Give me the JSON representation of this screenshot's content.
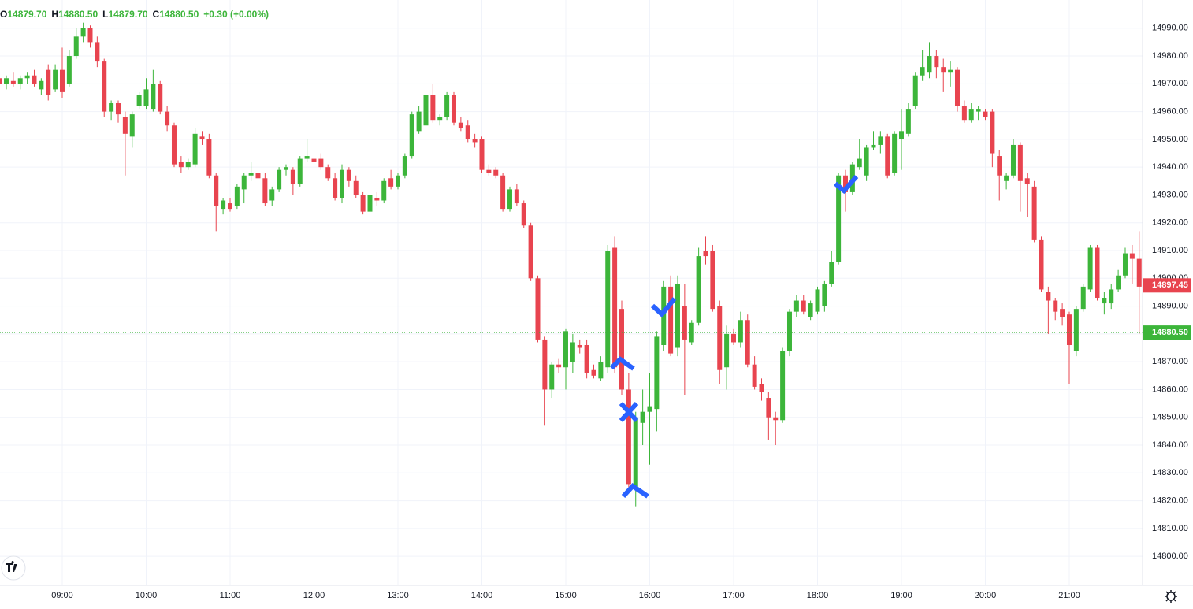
{
  "chart_data": {
    "type": "candlestick",
    "header": [
      {
        "key": "O",
        "value": "14879.70"
      },
      {
        "key": "H",
        "value": "14880.50"
      },
      {
        "key": "L",
        "value": "14879.70"
      },
      {
        "key": "C",
        "value": "14880.50"
      }
    ],
    "change": "+0.30 (+0.00%)",
    "up_color": "#3cb53a",
    "down_color": "#e8444f",
    "x": [
      495,
      500,
      505,
      510,
      515,
      520,
      525,
      530,
      535,
      540,
      545,
      550,
      555,
      560,
      565,
      570,
      575,
      580,
      585,
      590,
      595,
      600,
      605,
      610,
      615,
      620,
      625,
      630,
      635,
      640,
      645,
      650,
      655,
      660,
      665,
      670,
      675,
      680,
      685,
      690,
      695,
      700,
      705,
      710,
      715,
      720,
      725,
      730,
      735,
      740,
      745,
      750,
      755,
      760,
      765,
      770,
      775,
      780,
      785,
      790,
      795,
      800,
      805,
      810,
      815,
      820,
      825,
      830,
      835,
      840,
      845,
      850,
      855,
      860,
      865,
      870,
      875,
      880,
      885,
      890,
      895,
      900,
      905,
      910,
      915,
      920,
      925,
      930,
      935,
      940,
      945,
      950,
      955,
      960,
      965,
      970,
      975,
      980,
      985,
      990,
      995,
      1000,
      1005,
      1010,
      1015,
      1020,
      1025,
      1030,
      1035,
      1040,
      1045,
      1050,
      1055,
      1060,
      1065,
      1070,
      1075,
      1080,
      1085,
      1090,
      1095,
      1100,
      1105,
      1110,
      1115,
      1120,
      1125,
      1130,
      1135,
      1140,
      1145,
      1150,
      1155,
      1160,
      1165,
      1170,
      1175,
      1180,
      1185,
      1190,
      1195,
      1200,
      1205,
      1210,
      1215,
      1220,
      1225,
      1230,
      1235,
      1240,
      1245,
      1250,
      1255,
      1260,
      1265,
      1270,
      1275,
      1280,
      1285,
      1290,
      1295,
      1300,
      1305,
      1310
    ],
    "open": [
      14972,
      14970,
      14971,
      14970,
      14972,
      14973,
      14968,
      14975,
      14968,
      14975,
      14970,
      14980,
      14987,
      14990,
      14985,
      14978,
      14960,
      14963,
      14958,
      14951,
      14962,
      14962,
      14961,
      14970,
      14960,
      14955,
      14942,
      14940,
      14941,
      14951,
      14950,
      14937,
      14925,
      14927,
      14926,
      14932,
      14937,
      14938,
      14936,
      14928,
      14932,
      14939,
      14939,
      14934,
      14943,
      14943,
      14943,
      14940,
      14936,
      14929,
      14939,
      14935,
      14930,
      14924,
      14929,
      14928,
      14936,
      14933,
      14937,
      14944,
      14953,
      14955,
      14966,
      14957,
      14958,
      14966,
      14956,
      14955,
      14950,
      14950,
      14939,
      14939,
      14937,
      14925,
      14932,
      14927,
      14919,
      14900,
      14878,
      14860,
      14869,
      14868,
      14870,
      14876,
      14876,
      14867,
      14864,
      14868,
      14911,
      14889,
      14860,
      14825,
      14848,
      14852,
      14853,
      14876,
      14897,
      14875,
      14890,
      14877,
      14884,
      14910,
      14910,
      14890,
      14868,
      14880,
      14877,
      14885,
      14869,
      14862,
      14857,
      14850,
      14849,
      14874,
      14888,
      14892,
      14886,
      14888,
      14890,
      14898,
      14906,
      14937,
      14931,
      14940,
      14937,
      14947,
      14948,
      14951,
      14938,
      14950,
      14952,
      14962,
      14973,
      14974,
      14980,
      14976,
      14974,
      14975,
      14962,
      14957,
      14960,
      14960,
      14960,
      14944,
      14935,
      14937,
      14948,
      14936,
      14933,
      14914,
      14895,
      14892,
      14889,
      14887,
      14874,
      14889,
      14896,
      14911,
      14891,
      14891,
      14896,
      14901,
      14909,
      14907
    ],
    "high": [
      14975,
      14973,
      14974,
      14973,
      14974,
      14975,
      14972,
      14977,
      14977,
      14983,
      14982,
      14990,
      14992,
      14991,
      14987,
      14979,
      14964,
      14964,
      14960,
      14960,
      14967,
      14972,
      14975,
      14971,
      14962,
      14956,
      14944,
      14943,
      14954,
      14953,
      14952,
      14938,
      14929,
      14929,
      14934,
      14938,
      14942,
      14940,
      14938,
      14933,
      14940,
      14941,
      14940,
      14944,
      14950,
      14945,
      14945,
      14941,
      14938,
      14941,
      14940,
      14937,
      14931,
      14931,
      14931,
      14936,
      14939,
      14938,
      14945,
      14960,
      14962,
      14967,
      14970,
      14959,
      14967,
      14967,
      14958,
      14957,
      14952,
      14951,
      14941,
      14940,
      14938,
      14933,
      14934,
      14928,
      14920,
      14901,
      14879,
      14870,
      14871,
      14882,
      14880,
      14878,
      14878,
      14869,
      14872,
      14912,
      14915,
      14892,
      14866,
      14852,
      14860,
      14866,
      14881,
      14899,
      14901,
      14901,
      14898,
      14885,
      14911,
      14915,
      14912,
      14892,
      14883,
      14882,
      14888,
      14887,
      14872,
      14864,
      14859,
      14852,
      14875,
      14889,
      14894,
      14894,
      14892,
      14897,
      14899,
      14910,
      14938,
      14939,
      14942,
      14950,
      14948,
      14953,
      14953,
      14952,
      14953,
      14961,
      14963,
      14974,
      14982,
      14985,
      14982,
      14979,
      14978,
      14976,
      14964,
      14963,
      14962,
      14961,
      14961,
      14946,
      14938,
      14950,
      14949,
      14938,
      14935,
      14915,
      14897,
      14893,
      14891,
      14888,
      14890,
      14898,
      14912,
      14912,
      14895,
      14898,
      14903,
      14911,
      14912,
      14917
    ],
    "low": [
      14968,
      14968,
      14969,
      14968,
      14970,
      14969,
      14966,
      14964,
      14967,
      14965,
      14969,
      14979,
      14985,
      14983,
      14976,
      14958,
      14957,
      14956,
      14937,
      14947,
      14961,
      14961,
      14960,
      14959,
      14953,
      14940,
      14938,
      14939,
      14940,
      14948,
      14936,
      14917,
      14923,
      14924,
      14925,
      14927,
      14935,
      14935,
      14926,
      14926,
      14931,
      14937,
      14930,
      14933,
      14942,
      14941,
      14939,
      14935,
      14928,
      14927,
      14933,
      14929,
      14923,
      14923,
      14926,
      14927,
      14932,
      14932,
      14936,
      14943,
      14952,
      14954,
      14956,
      14955,
      14957,
      14955,
      14953,
      14949,
      14947,
      14938,
      14937,
      14936,
      14924,
      14924,
      14926,
      14918,
      14899,
      14877,
      14847,
      14857,
      14866,
      14860,
      14866,
      14873,
      14864,
      14864,
      14863,
      14866,
      14866,
      14858,
      14824,
      14818,
      14840,
      14833,
      14845,
      14874,
      14872,
      14872,
      14858,
      14876,
      14883,
      14905,
      14888,
      14862,
      14860,
      14876,
      14875,
      14868,
      14860,
      14856,
      14842,
      14840,
      14848,
      14872,
      14886,
      14887,
      14885,
      14887,
      14888,
      14897,
      14905,
      14924,
      14930,
      14939,
      14935,
      14946,
      14945,
      14936,
      14937,
      14939,
      14951,
      14961,
      14971,
      14972,
      14972,
      14967,
      14969,
      14960,
      14956,
      14956,
      14957,
      14957,
      14940,
      14928,
      14932,
      14936,
      14924,
      14922,
      14913,
      14895,
      14880,
      14885,
      14883,
      14862,
      14872,
      14888,
      14895,
      14892,
      14887,
      14889,
      14895,
      14900,
      14898,
      14880
    ],
    "close": [
      14970,
      14972,
      14970,
      14972,
      14973,
      14970,
      14971,
      14966,
      14975,
      14967,
      14980,
      14987,
      14990,
      14985,
      14978,
      14960,
      14963,
      14959,
      14952,
      14959,
      14966,
      14968,
      14970,
      14960,
      14955,
      14941,
      14940,
      14942,
      14952,
      14950,
      14937,
      14926,
      14928,
      14925,
      14933,
      14937,
      14938,
      14936,
      14927,
      14932,
      14939,
      14940,
      14934,
      14943,
      14944,
      14942,
      14940,
      14936,
      14929,
      14939,
      14935,
      14930,
      14924,
      14930,
      14928,
      14935,
      14933,
      14937,
      14944,
      14959,
      14960,
      14966,
      14957,
      14958,
      14966,
      14956,
      14954,
      14950,
      14949,
      14939,
      14938,
      14937,
      14925,
      14932,
      14927,
      14919,
      14900,
      14878,
      14860,
      14869,
      14868,
      14881,
      14877,
      14875,
      14866,
      14865,
      14870,
      14910,
      14868,
      14860,
      14826,
      14850,
      14852,
      14854,
      14879,
      14897,
      14873,
      14898,
      14878,
      14884,
      14908,
      14908,
      14889,
      14867,
      14880,
      14877,
      14885,
      14869,
      14861,
      14859,
      14850,
      14849,
      14874,
      14888,
      14892,
      14888,
      14891,
      14896,
      14898,
      14906,
      14937,
      14931,
      14941,
      14943,
      14947,
      14948,
      14951,
      14937,
      14952,
      14953,
      14961,
      14973,
      14976,
      14980,
      14976,
      14974,
      14975,
      14962,
      14957,
      14961,
      14961,
      14958,
      14945,
      14937,
      14937,
      14948,
      14935,
      14934,
      14914,
      14896,
      14892,
      14888,
      14886,
      14876,
      14889,
      14897,
      14911,
      14893,
      14893,
      14896,
      14901,
      14909,
      14907,
      14897
    ],
    "xlim": [
      495.5,
      1312.4
    ],
    "ylim": [
      14789.56,
      15000.13
    ],
    "xticks": [
      {
        "value": 540,
        "label": "09:00"
      },
      {
        "value": 600,
        "label": "10:00"
      },
      {
        "value": 660,
        "label": "11:00"
      },
      {
        "value": 720,
        "label": "12:00"
      },
      {
        "value": 780,
        "label": "13:00"
      },
      {
        "value": 840,
        "label": "14:00"
      },
      {
        "value": 900,
        "label": "15:00"
      },
      {
        "value": 960,
        "label": "16:00"
      },
      {
        "value": 1020,
        "label": "17:00"
      },
      {
        "value": 1080,
        "label": "18:00"
      },
      {
        "value": 1140,
        "label": "19:00"
      },
      {
        "value": 1200,
        "label": "20:00"
      },
      {
        "value": 1260,
        "label": "21:00"
      }
    ],
    "yticks": [
      {
        "value": 14800,
        "label": "14800.00"
      },
      {
        "value": 14810,
        "label": "14810.00"
      },
      {
        "value": 14820,
        "label": "14820.00"
      },
      {
        "value": 14830,
        "label": "14830.00"
      },
      {
        "value": 14840,
        "label": "14840.00"
      },
      {
        "value": 14850,
        "label": "14850.00"
      },
      {
        "value": 14860,
        "label": "14860.00"
      },
      {
        "value": 14870,
        "label": "14870.00"
      },
      {
        "value": 14880,
        "label": "14880.00"
      },
      {
        "value": 14890,
        "label": "14890.00"
      },
      {
        "value": 14900,
        "label": "14900.00"
      },
      {
        "value": 14910,
        "label": "14910.00"
      },
      {
        "value": 14920,
        "label": "14920.00"
      },
      {
        "value": 14930,
        "label": "14930.00"
      },
      {
        "value": 14940,
        "label": "14940.00"
      },
      {
        "value": 14950,
        "label": "14950.00"
      },
      {
        "value": 14960,
        "label": "14960.00"
      },
      {
        "value": 14970,
        "label": "14970.00"
      },
      {
        "value": 14980,
        "label": "14980.00"
      },
      {
        "value": 14990,
        "label": "14990.00"
      }
    ],
    "price_labels": [
      {
        "value": 14897.45,
        "label": "14897.45",
        "color": "#e8444f"
      },
      {
        "value": 14880.5,
        "label": "14880.50",
        "color": "#3cb53a"
      }
    ],
    "grid": true
  }
}
